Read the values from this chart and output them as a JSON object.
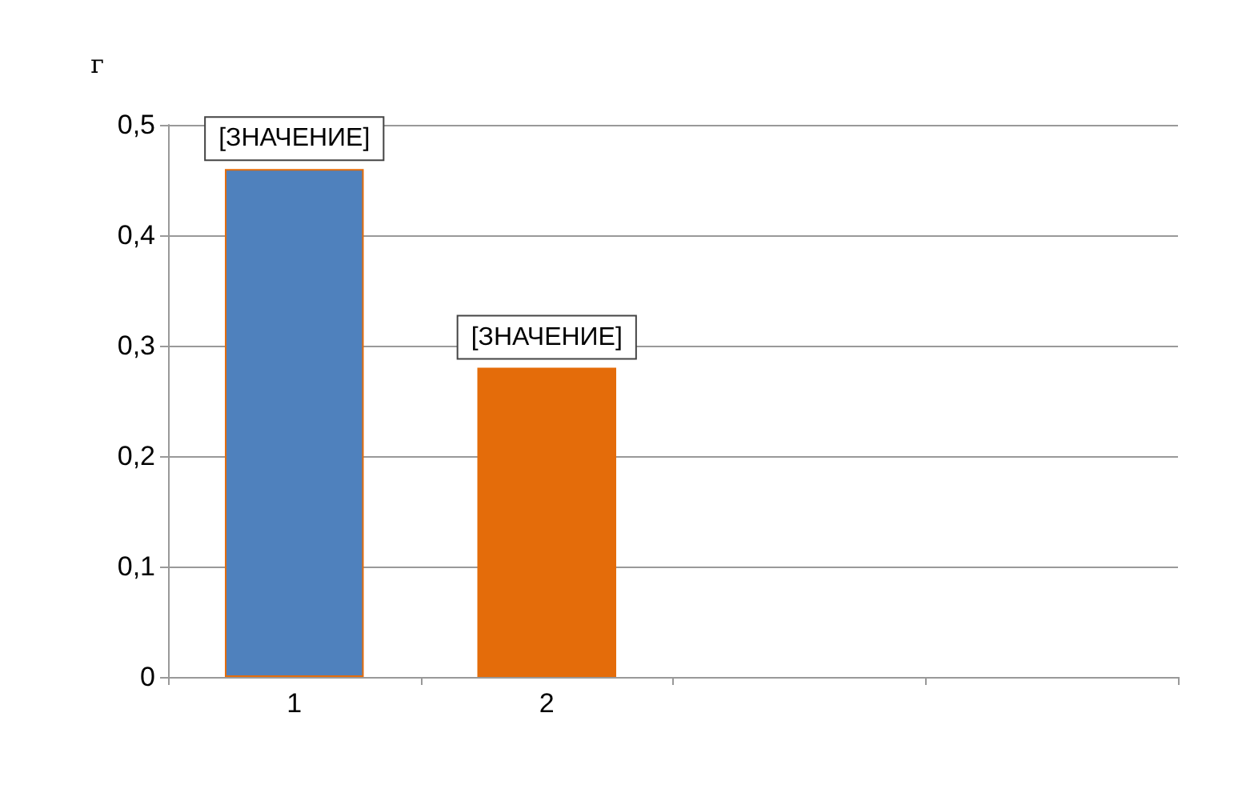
{
  "chart_data": {
    "type": "bar",
    "ylabel": "г",
    "categories": [
      "1",
      "2",
      null,
      null
    ],
    "values": [
      0.46,
      0.28,
      null,
      null
    ],
    "colors": [
      "#4f81bd",
      "#e46c0a",
      null,
      null
    ],
    "value_labels": [
      "[ЗНАЧЕНИЕ]",
      "[ЗНАЧЕНИЕ]",
      null,
      null
    ],
    "ylim": [
      0,
      0.5
    ],
    "yticks": [
      {
        "value": 0,
        "label": "0"
      },
      {
        "value": 0.1,
        "label": "0,1"
      },
      {
        "value": 0.2,
        "label": "0,2"
      },
      {
        "value": 0.3,
        "label": "0,3"
      },
      {
        "value": 0.4,
        "label": "0,4"
      },
      {
        "value": 0.5,
        "label": "0,5"
      }
    ],
    "grid": "y"
  }
}
